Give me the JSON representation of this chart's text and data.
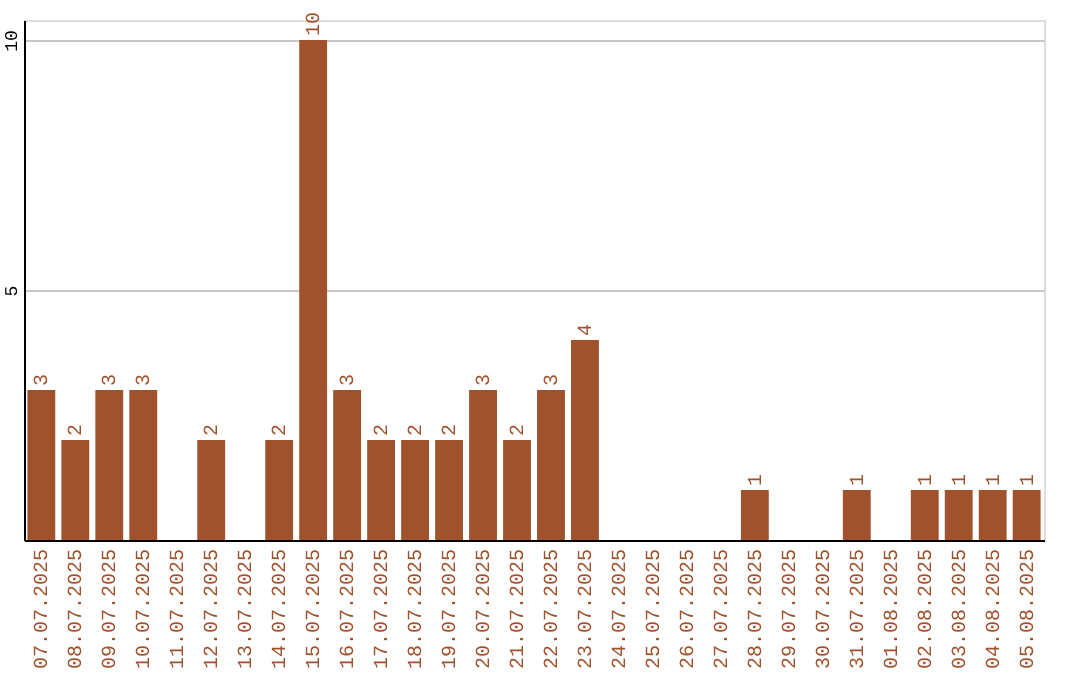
{
  "chart_data": {
    "type": "bar",
    "categories": [
      "07.07.2025",
      "08.07.2025",
      "09.07.2025",
      "10.07.2025",
      "11.07.2025",
      "12.07.2025",
      "13.07.2025",
      "14.07.2025",
      "15.07.2025",
      "16.07.2025",
      "17.07.2025",
      "18.07.2025",
      "19.07.2025",
      "20.07.2025",
      "21.07.2025",
      "22.07.2025",
      "23.07.2025",
      "24.07.2025",
      "25.07.2025",
      "26.07.2025",
      "27.07.2025",
      "28.07.2025",
      "29.07.2025",
      "30.07.2025",
      "31.07.2025",
      "01.08.2025",
      "02.08.2025",
      "03.08.2025",
      "04.08.2025",
      "05.08.2025"
    ],
    "series": [
      {
        "color": "#a0522d",
        "values": [
          3,
          2,
          3,
          3,
          0,
          2,
          0,
          2,
          10,
          3,
          2,
          2,
          2,
          3,
          2,
          3,
          4,
          0,
          0,
          0,
          0,
          1,
          0,
          0,
          1,
          0,
          1,
          1,
          1,
          1
        ],
        "value_labels": [
          "3",
          "2",
          "3",
          "3",
          null,
          "2",
          null,
          "2",
          "10",
          "3",
          "2",
          "2",
          "2",
          "3",
          "2",
          "3",
          "4",
          null,
          null,
          null,
          null,
          "1",
          null,
          null,
          "1",
          null,
          "1",
          "1",
          "1",
          "1"
        ]
      }
    ],
    "ylim": [
      0,
      10.4
    ],
    "yticks": [
      5,
      10
    ],
    "grid": "y"
  }
}
